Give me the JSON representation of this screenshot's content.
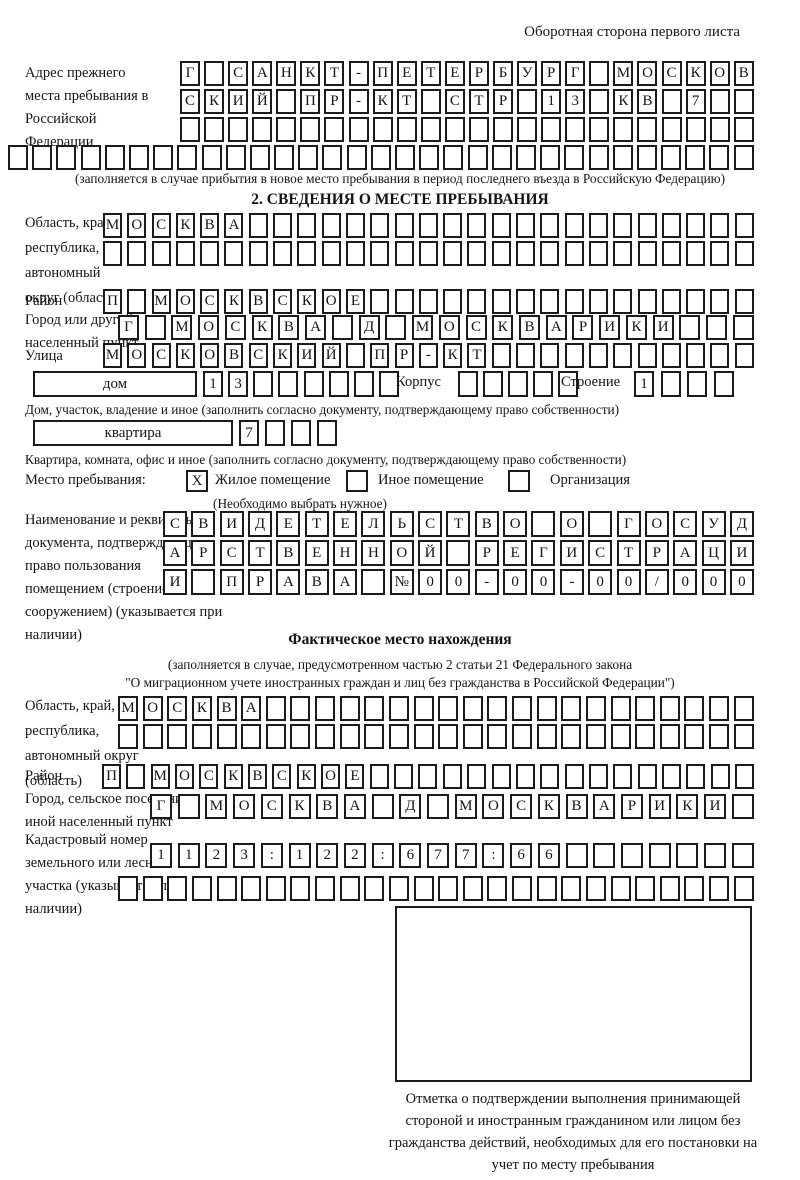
{
  "page": {
    "corner_note": "Оборотная сторона первого листа"
  },
  "prev_address": {
    "label": "Адрес прежнего места пребывания в Российской Федерации",
    "rows": [
      [
        "Г",
        "",
        "С",
        "А",
        "Н",
        "К",
        "Т",
        "-",
        "П",
        "Е",
        "Т",
        "Е",
        "Р",
        "Б",
        "У",
        "Р",
        "Г",
        "",
        "М",
        "О",
        "С",
        "К",
        "О",
        "В"
      ],
      [
        "С",
        "К",
        "И",
        "Й",
        "",
        "П",
        "Р",
        "-",
        "К",
        "Т",
        "",
        "С",
        "Т",
        "Р",
        "",
        "1",
        "3",
        "",
        "К",
        "В",
        "",
        "7",
        "",
        ""
      ],
      [
        "",
        "",
        "",
        "",
        "",
        "",
        "",
        "",
        "",
        "",
        "",
        "",
        "",
        "",
        "",
        "",
        "",
        "",
        "",
        "",
        "",
        "",
        "",
        ""
      ],
      [
        "",
        "",
        "",
        "",
        "",
        "",
        "",
        "",
        "",
        "",
        "",
        "",
        "",
        "",
        "",
        "",
        "",
        "",
        "",
        "",
        "",
        "",
        "",
        "",
        "",
        "",
        "",
        "",
        "",
        "",
        ""
      ]
    ],
    "note": "(заполняется в случае прибытия в новое место пребывания в период последнего въезда в Российскую Федерацию)"
  },
  "section2": {
    "title": "2. СВЕДЕНИЯ О МЕСТЕ ПРЕБЫВАНИЯ",
    "oblast": {
      "label": "Область, край, республика, автономный округ (область)",
      "rows": [
        [
          "М",
          "О",
          "С",
          "К",
          "В",
          "А",
          "",
          "",
          "",
          "",
          "",
          "",
          "",
          "",
          "",
          "",
          "",
          "",
          "",
          "",
          "",
          "",
          "",
          "",
          "",
          "",
          ""
        ],
        [
          "",
          "",
          "",
          "",
          "",
          "",
          "",
          "",
          "",
          "",
          "",
          "",
          "",
          "",
          "",
          "",
          "",
          "",
          "",
          "",
          "",
          "",
          "",
          "",
          "",
          "",
          ""
        ]
      ]
    },
    "rayon": {
      "label": "Район",
      "cells": [
        "П",
        "",
        "М",
        "О",
        "С",
        "К",
        "В",
        "С",
        "К",
        "О",
        "Е",
        "",
        "",
        "",
        "",
        "",
        "",
        "",
        "",
        "",
        "",
        "",
        "",
        "",
        "",
        "",
        ""
      ]
    },
    "gorod": {
      "label": "Город или другой населенный пункт",
      "cells": [
        "Г",
        "",
        "М",
        "О",
        "С",
        "К",
        "В",
        "А",
        "",
        "Д",
        "",
        "М",
        "О",
        "С",
        "К",
        "В",
        "А",
        "Р",
        "И",
        "К",
        "И",
        "",
        "",
        ""
      ]
    },
    "ulitsa": {
      "label": "Улица",
      "cells": [
        "М",
        "О",
        "С",
        "К",
        "О",
        "В",
        "С",
        "К",
        "И",
        "Й",
        "",
        "П",
        "Р",
        "-",
        "К",
        "Т",
        "",
        "",
        "",
        "",
        "",
        "",
        "",
        "",
        "",
        "",
        ""
      ]
    },
    "dom": {
      "box_label": "дом",
      "cells": [
        "1",
        "3",
        "",
        "",
        "",
        "",
        "",
        ""
      ],
      "note": "Дом, участок, владение и иное (заполнить согласно документу, подтверждающему право собственности)"
    },
    "korpus": {
      "label": "Корпус",
      "cells": [
        "",
        "",
        "",
        "",
        ""
      ]
    },
    "stroenie": {
      "label": "Строение",
      "cells": [
        "1",
        "",
        "",
        ""
      ]
    },
    "kvartira": {
      "box_label": "квартира",
      "cells": [
        "7",
        "",
        "",
        ""
      ],
      "note": "Квартира, комната, офис и иное (заполнить согласно документу, подтверждающему право собственности)"
    },
    "stay_type": {
      "label": "Место пребывания:",
      "options": [
        {
          "label": "Жилое помещение",
          "checked": "X"
        },
        {
          "label": "Иное помещение",
          "checked": ""
        },
        {
          "label": "Организация",
          "checked": ""
        }
      ],
      "note": "(Необходимо выбрать нужное)"
    },
    "document": {
      "label": "Наименование и реквизиты документа, подтверждающего право пользования помещением (строением, сооружением) (указывается при наличии)",
      "rows": [
        [
          "С",
          "В",
          "И",
          "Д",
          "Е",
          "Т",
          "Е",
          "Л",
          "Ь",
          "С",
          "Т",
          "В",
          "О",
          "",
          "О",
          "",
          "Г",
          "О",
          "С",
          "У",
          "Д"
        ],
        [
          "А",
          "Р",
          "С",
          "Т",
          "В",
          "Е",
          "Н",
          "Н",
          "О",
          "Й",
          "",
          "Р",
          "Е",
          "Г",
          "И",
          "С",
          "Т",
          "Р",
          "А",
          "Ц",
          "И"
        ],
        [
          "И",
          "",
          "П",
          "Р",
          "А",
          "В",
          "А",
          "",
          "№",
          "0",
          "0",
          "-",
          "0",
          "0",
          "-",
          "0",
          "0",
          "/",
          "0",
          "0",
          "0"
        ]
      ]
    }
  },
  "factual": {
    "title": "Фактическое место нахождения",
    "note_line1": "(заполняется в случае, предусмотренном частью 2 статьи 21 Федерального закона",
    "note_line2": "\"О миграционном учете иностранных граждан и лиц без гражданства в Российской Федерации\")",
    "oblast": {
      "label": "Область, край, республика, автономный округ (область)",
      "rows": [
        [
          "М",
          "О",
          "С",
          "К",
          "В",
          "А",
          "",
          "",
          "",
          "",
          "",
          "",
          "",
          "",
          "",
          "",
          "",
          "",
          "",
          "",
          "",
          "",
          "",
          "",
          "",
          ""
        ],
        [
          "",
          "",
          "",
          "",
          "",
          "",
          "",
          "",
          "",
          "",
          "",
          "",
          "",
          "",
          "",
          "",
          "",
          "",
          "",
          "",
          "",
          "",
          "",
          "",
          "",
          ""
        ]
      ]
    },
    "rayon": {
      "label": "Район",
      "cells": [
        "П",
        "",
        "М",
        "О",
        "С",
        "К",
        "В",
        "С",
        "К",
        "О",
        "Е",
        "",
        "",
        "",
        "",
        "",
        "",
        "",
        "",
        "",
        "",
        "",
        "",
        "",
        "",
        "",
        ""
      ]
    },
    "gorod": {
      "label": "Город, сельское поселение, иной населенный пункт",
      "cells": [
        "Г",
        "",
        "М",
        "О",
        "С",
        "К",
        "В",
        "А",
        "",
        "Д",
        "",
        "М",
        "О",
        "С",
        "К",
        "В",
        "А",
        "Р",
        "И",
        "К",
        "И",
        ""
      ]
    },
    "kadastr": {
      "label": "Кадастровый номер земельного или лесного участка (указывается при наличии)",
      "rows": [
        [
          "1",
          "1",
          "2",
          "3",
          ":",
          "1",
          "2",
          "2",
          ":",
          "6",
          "7",
          "7",
          ":",
          "6",
          "6",
          "",
          "",
          "",
          "",
          "",
          "",
          ""
        ],
        [
          "",
          "",
          "",
          "",
          "",
          "",
          "",
          "",
          "",
          "",
          "",
          "",
          "",
          "",
          "",
          "",
          "",
          "",
          "",
          "",
          "",
          "",
          "",
          "",
          "",
          ""
        ]
      ]
    },
    "stamp_caption": "Отметка о подтверждении выполнения принимающей стороной и иностранным гражданином или лицом без гражданства действий, необходимых для его постановки на учет по месту пребывания"
  }
}
